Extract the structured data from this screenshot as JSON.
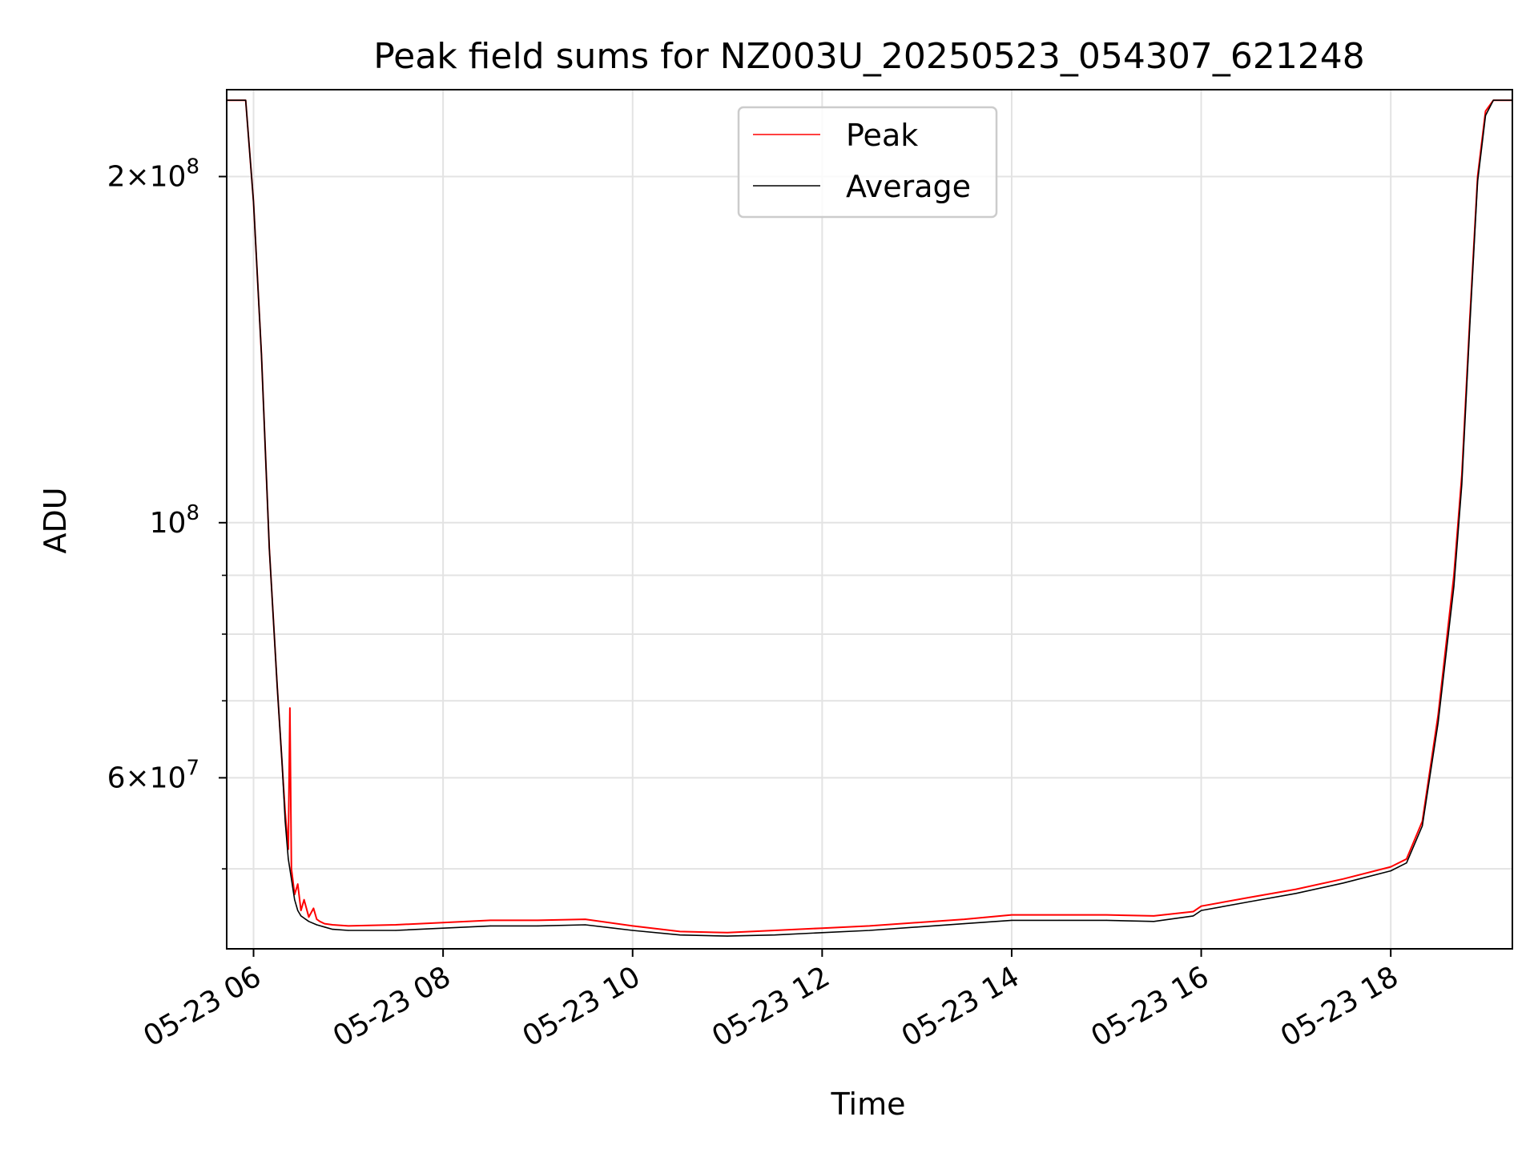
{
  "chart_data": {
    "type": "line",
    "title": "Peak field sums for NZ003U_20250523_054307_621248",
    "xlabel": "Time",
    "ylabel": "ADU",
    "yscale": "log",
    "ylim": [
      42600000,
      238000000
    ],
    "xlim": [
      "05-23 05:43",
      "05-23 19:17"
    ],
    "grid": true,
    "legend_position": "upper center",
    "x_ticks": [
      {
        "value": "05-23 06:00",
        "label": "05-23 06"
      },
      {
        "value": "05-23 08:00",
        "label": "05-23 08"
      },
      {
        "value": "05-23 10:00",
        "label": "05-23 10"
      },
      {
        "value": "05-23 12:00",
        "label": "05-23 12"
      },
      {
        "value": "05-23 14:00",
        "label": "05-23 14"
      },
      {
        "value": "05-23 16:00",
        "label": "05-23 16"
      },
      {
        "value": "05-23 18:00",
        "label": "05-23 18"
      }
    ],
    "y_ticks_major": [
      {
        "value": 200000000,
        "mantissa": "2",
        "exponent": "8"
      },
      {
        "value": 100000000,
        "mantissa": "",
        "exponent": "8"
      },
      {
        "value": 60000000,
        "mantissa": "6",
        "exponent": "7"
      }
    ],
    "y_ticks_minor": [
      50000000,
      70000000,
      80000000,
      90000000
    ],
    "series": [
      {
        "name": "Peak",
        "color": "#ff0000",
        "x": [
          "05-23 05:43",
          "05-23 05:55",
          "05-23 06:00",
          "05-23 06:05",
          "05-23 06:10",
          "05-23 06:15",
          "05-23 06:18",
          "05-23 06:20",
          "05-23 06:22",
          "05-23 06:23",
          "05-23 06:24",
          "05-23 06:26",
          "05-23 06:28",
          "05-23 06:30",
          "05-23 06:32",
          "05-23 06:35",
          "05-23 06:38",
          "05-23 06:40",
          "05-23 06:42",
          "05-23 06:45",
          "05-23 06:50",
          "05-23 07:00",
          "05-23 07:30",
          "05-23 08:00",
          "05-23 08:30",
          "05-23 09:00",
          "05-23 09:30",
          "05-23 10:00",
          "05-23 10:30",
          "05-23 11:00",
          "05-23 11:30",
          "05-23 12:00",
          "05-23 12:30",
          "05-23 13:00",
          "05-23 13:30",
          "05-23 14:00",
          "05-23 14:30",
          "05-23 15:00",
          "05-23 15:30",
          "05-23 15:55",
          "05-23 16:00",
          "05-23 16:30",
          "05-23 17:00",
          "05-23 17:30",
          "05-23 18:00",
          "05-23 18:10",
          "05-23 18:20",
          "05-23 18:30",
          "05-23 18:40",
          "05-23 18:45",
          "05-23 18:50",
          "05-23 18:55",
          "05-23 19:00",
          "05-23 19:05",
          "05-23 19:10",
          "05-23 19:17"
        ],
        "y": [
          233000000,
          233000000,
          190000000,
          140000000,
          95000000,
          72000000,
          62000000,
          56000000,
          52000000,
          69000000,
          50000000,
          47500000,
          48500000,
          46000000,
          47000000,
          45400000,
          46200000,
          45200000,
          45000000,
          44800000,
          44700000,
          44600000,
          44700000,
          44900000,
          45100000,
          45100000,
          45200000,
          44600000,
          44100000,
          44000000,
          44200000,
          44400000,
          44600000,
          44900000,
          45200000,
          45600000,
          45600000,
          45600000,
          45500000,
          45900000,
          46400000,
          47200000,
          48000000,
          49000000,
          50200000,
          51000000,
          55000000,
          68000000,
          90000000,
          110000000,
          150000000,
          200000000,
          228000000,
          233000000,
          233000000,
          233000000
        ]
      },
      {
        "name": "Average",
        "color": "#000000",
        "x": [
          "05-23 05:43",
          "05-23 05:55",
          "05-23 06:00",
          "05-23 06:05",
          "05-23 06:10",
          "05-23 06:15",
          "05-23 06:18",
          "05-23 06:20",
          "05-23 06:22",
          "05-23 06:24",
          "05-23 06:26",
          "05-23 06:28",
          "05-23 06:30",
          "05-23 06:35",
          "05-23 06:40",
          "05-23 06:45",
          "05-23 06:50",
          "05-23 07:00",
          "05-23 07:30",
          "05-23 08:00",
          "05-23 08:30",
          "05-23 09:00",
          "05-23 09:30",
          "05-23 10:00",
          "05-23 10:30",
          "05-23 11:00",
          "05-23 11:30",
          "05-23 12:00",
          "05-23 12:30",
          "05-23 13:00",
          "05-23 13:30",
          "05-23 14:00",
          "05-23 14:30",
          "05-23 15:00",
          "05-23 15:30",
          "05-23 15:55",
          "05-23 16:00",
          "05-23 16:30",
          "05-23 17:00",
          "05-23 17:30",
          "05-23 18:00",
          "05-23 18:10",
          "05-23 18:20",
          "05-23 18:30",
          "05-23 18:40",
          "05-23 18:45",
          "05-23 18:50",
          "05-23 18:55",
          "05-23 19:00",
          "05-23 19:05",
          "05-23 19:10",
          "05-23 19:17"
        ],
        "y": [
          233000000,
          233000000,
          190000000,
          140000000,
          95000000,
          72000000,
          62000000,
          55000000,
          51000000,
          49000000,
          47000000,
          46000000,
          45500000,
          45000000,
          44700000,
          44500000,
          44300000,
          44200000,
          44200000,
          44400000,
          44600000,
          44600000,
          44700000,
          44200000,
          43800000,
          43700000,
          43800000,
          44000000,
          44200000,
          44500000,
          44800000,
          45100000,
          45100000,
          45100000,
          45000000,
          45500000,
          46000000,
          46800000,
          47600000,
          48600000,
          49800000,
          50600000,
          54500000,
          67000000,
          88000000,
          108000000,
          148000000,
          198000000,
          226000000,
          233000000,
          233000000,
          233000000
        ]
      }
    ]
  }
}
